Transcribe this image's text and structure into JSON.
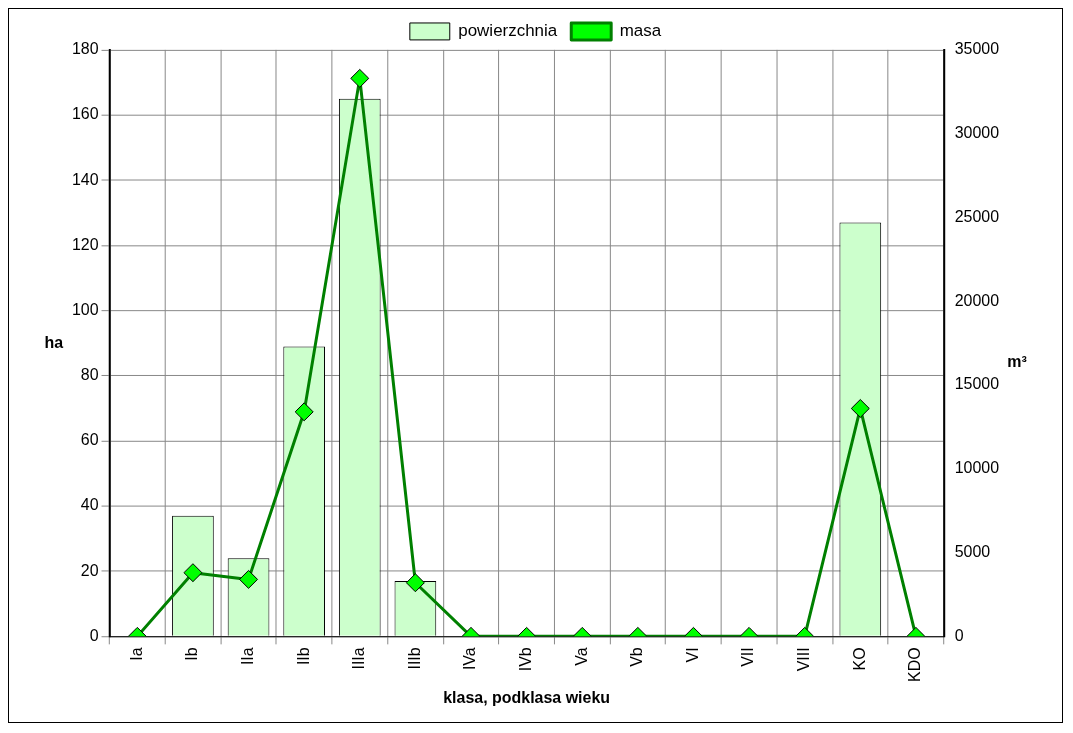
{
  "chart_data": {
    "type": "bar",
    "xlabel": "klasa, podklasa wieku",
    "ylabel": "ha",
    "y2label": "m³",
    "categories": [
      "Ia",
      "Ib",
      "IIa",
      "IIb",
      "IIIa",
      "IIIb",
      "IVa",
      "IVb",
      "Va",
      "Vb",
      "VI",
      "VII",
      "VIII",
      "KO",
      "KDO"
    ],
    "series": [
      {
        "name": "powierzchnia",
        "color": "#ccffcc",
        "values": [
          0,
          37,
          24,
          89,
          165,
          17,
          0,
          0,
          0,
          0,
          0,
          0,
          0,
          127,
          0
        ]
      },
      {
        "name": "masa",
        "type": "line",
        "axis": "y2",
        "color": "#008000",
        "marker": "diamond",
        "values": [
          0,
          3800,
          3400,
          13400,
          33300,
          3200,
          0,
          0,
          0,
          0,
          0,
          0,
          0,
          13600,
          0
        ]
      }
    ],
    "ylim": [
      0,
      180
    ],
    "yticks": [
      0,
      20,
      40,
      60,
      80,
      100,
      120,
      140,
      160,
      180
    ],
    "y2lim": [
      0,
      35000
    ],
    "y2ticks": [
      0,
      5000,
      10000,
      15000,
      20000,
      25000,
      30000,
      35000
    ],
    "grid": true,
    "legend": "top"
  }
}
